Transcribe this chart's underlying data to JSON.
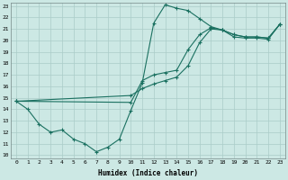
{
  "xlabel": "Humidex (Indice chaleur)",
  "bg_color": "#cce8e4",
  "grid_color": "#aaccc8",
  "line_color": "#1a7060",
  "xlim": [
    -0.5,
    23.5
  ],
  "ylim": [
    9.7,
    23.3
  ],
  "xtick_labels": [
    "0",
    "1",
    "2",
    "3",
    "4",
    "5",
    "6",
    "7",
    "8",
    "9",
    "10",
    "11",
    "12",
    "13",
    "14",
    "15",
    "16",
    "17",
    "18",
    "19",
    "20",
    "21",
    "22",
    "23"
  ],
  "ytick_labels": [
    "10",
    "11",
    "12",
    "13",
    "14",
    "15",
    "16",
    "17",
    "18",
    "19",
    "20",
    "21",
    "22",
    "23"
  ],
  "line1_x": [
    0,
    1,
    2,
    3,
    4,
    5,
    6,
    7,
    8,
    9,
    10,
    11,
    12,
    13,
    14,
    15,
    16,
    17,
    18,
    19,
    20,
    21,
    22,
    23
  ],
  "line1_y": [
    14.7,
    14.0,
    12.7,
    12.0,
    12.2,
    11.4,
    11.0,
    10.3,
    10.7,
    11.4,
    13.9,
    16.3,
    21.5,
    23.1,
    22.8,
    22.6,
    21.9,
    21.2,
    20.9,
    20.3,
    20.2,
    20.2,
    20.1,
    21.4
  ],
  "line2_x": [
    0,
    10,
    11,
    12,
    13,
    14,
    15,
    16,
    17,
    18,
    19,
    20,
    21,
    22,
    23
  ],
  "line2_y": [
    14.7,
    14.6,
    16.5,
    17.0,
    17.2,
    17.4,
    19.2,
    20.5,
    21.1,
    20.9,
    20.5,
    20.3,
    20.3,
    20.2,
    21.4
  ],
  "line3_x": [
    0,
    10,
    11,
    12,
    13,
    14,
    15,
    16,
    17,
    18,
    19,
    20,
    21,
    22,
    23
  ],
  "line3_y": [
    14.7,
    15.2,
    15.8,
    16.2,
    16.5,
    16.8,
    17.8,
    19.8,
    21.0,
    20.9,
    20.5,
    20.3,
    20.3,
    20.2,
    21.4
  ]
}
